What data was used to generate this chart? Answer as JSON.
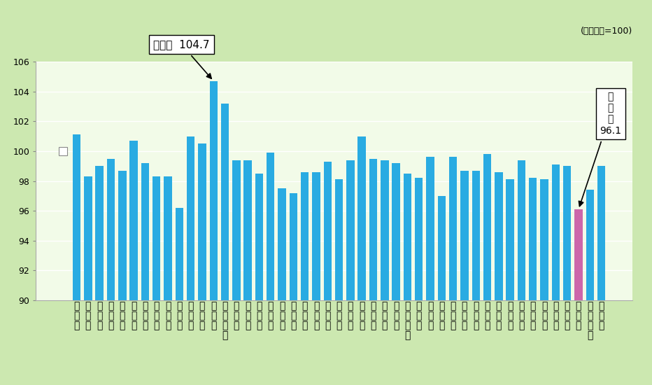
{
  "prefectures": [
    "北\n海\n道",
    "青\n森\n県",
    "岩\n手\n県",
    "宮\n城\n県",
    "秋\n田\n県",
    "山\n形\n県",
    "福\n島\n県",
    "茨\n城\n県",
    "栃\n木\n県",
    "群\n馬\n県",
    "埼\n玉\n県",
    "千\n葉\n県",
    "東\n京\n都",
    "神\n奈\n川\n県",
    "新\n潟\n県",
    "富\n山\n県",
    "石\n川\n県",
    "福\n井\n県",
    "山\n梨\n県",
    "長\n野\n県",
    "岐\n阜\n県",
    "静\n岡\n県",
    "愛\n知\n県",
    "三\n重\n県",
    "滋\n賀\n県",
    "京\n都\n府",
    "大\n阪\n府",
    "兵\n庫\n県",
    "奈\n良\n県",
    "和\n歌\n山\n県",
    "鳥\n取\n県",
    "島\n根\n県",
    "岡\n山\n県",
    "広\n島\n県",
    "山\n口\n県",
    "徳\n島\n県",
    "香\n川\n県",
    "愛\n媛\n県",
    "高\n知\n県",
    "福\n岡\n県",
    "佐\n賀\n県",
    "長\n崎\n県",
    "熊\n本\n県",
    "大\n分\n県",
    "宮\n崎\n県",
    "鹿\n児\n島\n県",
    "沖\n縄\n県"
  ],
  "values": [
    101.1,
    98.3,
    99.0,
    99.5,
    98.7,
    100.7,
    99.2,
    98.3,
    98.3,
    96.2,
    101.0,
    100.5,
    104.7,
    103.2,
    99.4,
    99.4,
    98.5,
    99.9,
    97.5,
    97.2,
    98.6,
    98.6,
    99.3,
    98.1,
    99.4,
    101.0,
    99.5,
    99.4,
    99.2,
    98.5,
    98.2,
    99.6,
    97.0,
    99.6,
    98.7,
    98.7,
    99.8,
    98.6,
    98.1,
    99.4,
    98.2,
    98.1,
    99.1,
    99.0,
    96.1,
    97.4,
    99.0
  ],
  "bar_colors": [
    "#29abe2",
    "#29abe2",
    "#29abe2",
    "#29abe2",
    "#29abe2",
    "#29abe2",
    "#29abe2",
    "#29abe2",
    "#29abe2",
    "#29abe2",
    "#29abe2",
    "#29abe2",
    "#29abe2",
    "#29abe2",
    "#29abe2",
    "#29abe2",
    "#29abe2",
    "#29abe2",
    "#29abe2",
    "#29abe2",
    "#29abe2",
    "#29abe2",
    "#29abe2",
    "#29abe2",
    "#29abe2",
    "#29abe2",
    "#29abe2",
    "#29abe2",
    "#29abe2",
    "#29abe2",
    "#29abe2",
    "#29abe2",
    "#29abe2",
    "#29abe2",
    "#29abe2",
    "#29abe2",
    "#29abe2",
    "#29abe2",
    "#29abe2",
    "#29abe2",
    "#29abe2",
    "#29abe2",
    "#29abe2",
    "#29abe2",
    "#cc66aa",
    "#29abe2",
    "#29abe2"
  ],
  "background_color": "#cce8b0",
  "plot_bg_color": "#f2fbe8",
  "ylim": [
    90,
    106
  ],
  "yticks": [
    90,
    92,
    94,
    96,
    98,
    100,
    102,
    104,
    106
  ],
  "note_text": "(全国平均=100)",
  "tokyo_idx": 12,
  "tokyo_val": 104.7,
  "tokyo_label": "東京都  104.7",
  "miyazaki_idx": 44,
  "miyazaki_val": 96.1,
  "miyazaki_label": "宮\n崎\n県\n96.1"
}
